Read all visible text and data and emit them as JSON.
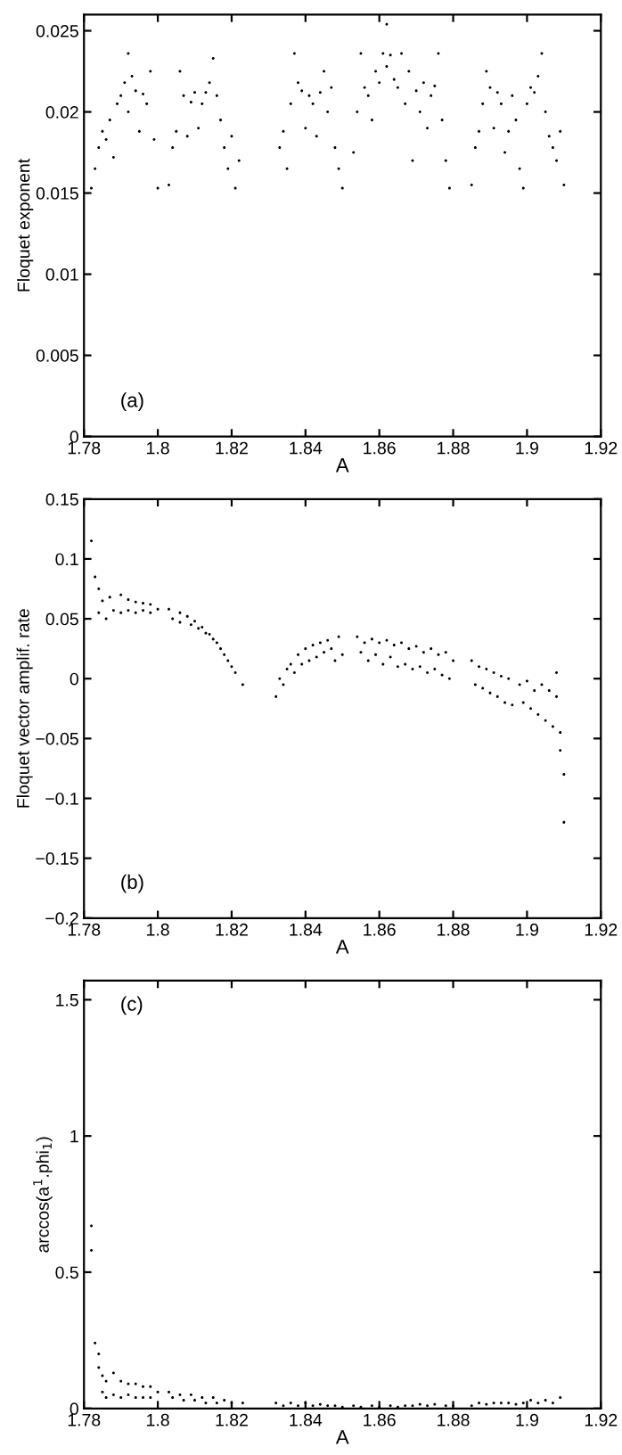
{
  "chart_data": [
    {
      "type": "scatter",
      "xlabel": "A",
      "ylabel": "Floquet exponent",
      "annotations": [
        "(a)"
      ],
      "color": "#000000",
      "marker": "circle",
      "grid": false,
      "xlim": [
        1.78,
        1.92
      ],
      "xticks": [
        1.78,
        1.8,
        1.82,
        1.84,
        1.86,
        1.88,
        1.9,
        1.92
      ],
      "ylim": [
        0,
        0.026
      ],
      "yticks": [
        0,
        0.005,
        0.01,
        0.015,
        0.02,
        0.025
      ],
      "x": [
        1.782,
        1.783,
        1.784,
        1.785,
        1.786,
        1.787,
        1.788,
        1.789,
        1.79,
        1.791,
        1.792,
        1.792,
        1.793,
        1.794,
        1.795,
        1.796,
        1.797,
        1.798,
        1.799,
        1.8,
        1.803,
        1.804,
        1.805,
        1.806,
        1.807,
        1.808,
        1.809,
        1.81,
        1.811,
        1.812,
        1.813,
        1.814,
        1.815,
        1.816,
        1.817,
        1.818,
        1.819,
        1.82,
        1.821,
        1.822,
        1.833,
        1.834,
        1.835,
        1.836,
        1.837,
        1.838,
        1.839,
        1.84,
        1.841,
        1.842,
        1.843,
        1.844,
        1.845,
        1.846,
        1.847,
        1.848,
        1.849,
        1.85,
        1.853,
        1.854,
        1.855,
        1.856,
        1.857,
        1.858,
        1.859,
        1.86,
        1.861,
        1.862,
        1.863,
        1.864,
        1.865,
        1.866,
        1.867,
        1.868,
        1.869,
        1.87,
        1.871,
        1.872,
        1.873,
        1.874,
        1.875,
        1.876,
        1.877,
        1.878,
        1.879,
        1.862,
        1.885,
        1.886,
        1.887,
        1.888,
        1.889,
        1.89,
        1.891,
        1.892,
        1.893,
        1.894,
        1.895,
        1.896,
        1.897,
        1.898,
        1.899,
        1.9,
        1.901,
        1.902,
        1.903,
        1.904,
        1.905,
        1.906,
        1.907,
        1.908,
        1.909,
        1.91
      ],
      "values": [
        0.0153,
        0.0165,
        0.0178,
        0.0188,
        0.0183,
        0.0195,
        0.0172,
        0.0205,
        0.021,
        0.0218,
        0.0236,
        0.02,
        0.0222,
        0.0213,
        0.0188,
        0.0211,
        0.0205,
        0.0225,
        0.0183,
        0.0153,
        0.0155,
        0.0178,
        0.0188,
        0.0225,
        0.021,
        0.0185,
        0.0206,
        0.0212,
        0.019,
        0.0205,
        0.0212,
        0.0218,
        0.0233,
        0.021,
        0.0195,
        0.0178,
        0.0165,
        0.0185,
        0.0153,
        0.017,
        0.0178,
        0.0188,
        0.0165,
        0.0205,
        0.0236,
        0.0218,
        0.0213,
        0.019,
        0.021,
        0.0205,
        0.0185,
        0.0212,
        0.0225,
        0.02,
        0.0215,
        0.0178,
        0.0165,
        0.0153,
        0.0175,
        0.02,
        0.0236,
        0.0215,
        0.021,
        0.0195,
        0.0225,
        0.0218,
        0.0236,
        0.0228,
        0.0235,
        0.022,
        0.0215,
        0.0236,
        0.0205,
        0.0225,
        0.017,
        0.0213,
        0.02,
        0.0218,
        0.019,
        0.021,
        0.0216,
        0.0236,
        0.0195,
        0.017,
        0.0153,
        0.0254,
        0.0155,
        0.0178,
        0.0188,
        0.0205,
        0.0225,
        0.0215,
        0.019,
        0.0212,
        0.0205,
        0.0175,
        0.0188,
        0.021,
        0.0195,
        0.0165,
        0.0153,
        0.0205,
        0.0215,
        0.0212,
        0.0222,
        0.0236,
        0.02,
        0.0185,
        0.0178,
        0.017,
        0.0188,
        0.0155
      ]
    },
    {
      "type": "scatter",
      "xlabel": "A",
      "ylabel": "Floquet vector amplif. rate",
      "annotations": [
        "(b)"
      ],
      "color": "#000000",
      "marker": "circle",
      "grid": false,
      "xlim": [
        1.78,
        1.92
      ],
      "xticks": [
        1.78,
        1.8,
        1.82,
        1.84,
        1.86,
        1.88,
        1.9,
        1.92
      ],
      "ylim": [
        -0.2,
        0.15
      ],
      "yticks": [
        -0.2,
        -0.15,
        -0.1,
        -0.05,
        0,
        0.05,
        0.1,
        0.15
      ],
      "x": [
        1.782,
        1.783,
        1.784,
        1.784,
        1.785,
        1.786,
        1.787,
        1.788,
        1.79,
        1.79,
        1.792,
        1.792,
        1.794,
        1.794,
        1.796,
        1.796,
        1.798,
        1.798,
        1.8,
        1.803,
        1.804,
        1.806,
        1.806,
        1.808,
        1.809,
        1.81,
        1.811,
        1.812,
        1.813,
        1.814,
        1.815,
        1.816,
        1.817,
        1.818,
        1.819,
        1.82,
        1.821,
        1.823,
        1.832,
        1.833,
        1.834,
        1.835,
        1.836,
        1.837,
        1.838,
        1.839,
        1.84,
        1.841,
        1.842,
        1.843,
        1.844,
        1.845,
        1.846,
        1.847,
        1.848,
        1.849,
        1.85,
        1.854,
        1.855,
        1.856,
        1.857,
        1.858,
        1.859,
        1.86,
        1.861,
        1.862,
        1.863,
        1.864,
        1.865,
        1.866,
        1.867,
        1.868,
        1.869,
        1.87,
        1.871,
        1.872,
        1.873,
        1.874,
        1.875,
        1.876,
        1.877,
        1.878,
        1.879,
        1.88,
        1.885,
        1.886,
        1.887,
        1.888,
        1.889,
        1.89,
        1.891,
        1.892,
        1.893,
        1.894,
        1.895,
        1.896,
        1.898,
        1.899,
        1.9,
        1.901,
        1.902,
        1.903,
        1.904,
        1.905,
        1.906,
        1.907,
        1.908,
        1.908,
        1.909,
        1.909,
        1.91,
        1.91
      ],
      "values": [
        0.115,
        0.085,
        0.075,
        0.055,
        0.065,
        0.05,
        0.068,
        0.057,
        0.07,
        0.055,
        0.066,
        0.057,
        0.064,
        0.055,
        0.063,
        0.057,
        0.062,
        0.055,
        0.058,
        0.058,
        0.05,
        0.055,
        0.047,
        0.052,
        0.045,
        0.048,
        0.042,
        0.043,
        0.038,
        0.037,
        0.033,
        0.03,
        0.025,
        0.02,
        0.015,
        0.01,
        0.005,
        -0.005,
        -0.015,
        0,
        -0.005,
        0.008,
        0.012,
        0.005,
        0.02,
        0.012,
        0.025,
        0.015,
        0.028,
        0.018,
        0.03,
        0.022,
        0.032,
        0.025,
        0.015,
        0.035,
        0.02,
        0.035,
        0.022,
        0.03,
        0.015,
        0.033,
        0.02,
        0.03,
        0.012,
        0.032,
        0.018,
        0.028,
        0.01,
        0.03,
        0.012,
        0.025,
        0.008,
        0.027,
        0.01,
        0.022,
        0.005,
        0.025,
        0.008,
        0.02,
        0.003,
        0.022,
        0,
        0.015,
        0.015,
        -0.005,
        0.01,
        -0.008,
        0.008,
        -0.012,
        0.005,
        -0.015,
        0.002,
        -0.02,
        0,
        -0.022,
        -0.005,
        -0.02,
        -0.002,
        -0.025,
        -0.01,
        -0.03,
        -0.005,
        -0.035,
        -0.01,
        -0.04,
        0.005,
        -0.015,
        -0.045,
        -0.06,
        -0.08,
        -0.12
      ]
    },
    {
      "type": "scatter",
      "xlabel": "A",
      "ylabel": "arccos(a$^{1}$.phi$_{1}$)",
      "annotations": [
        "(c)"
      ],
      "color": "#000000",
      "marker": "circle",
      "grid": false,
      "xlim": [
        1.78,
        1.92
      ],
      "xticks": [
        1.78,
        1.8,
        1.82,
        1.84,
        1.86,
        1.88,
        1.9,
        1.92
      ],
      "ylim": [
        0,
        1.57
      ],
      "yticks": [
        0,
        0.5,
        1,
        1.5
      ],
      "x": [
        1.782,
        1.782,
        1.783,
        1.784,
        1.784,
        1.785,
        1.785,
        1.786,
        1.786,
        1.788,
        1.788,
        1.79,
        1.79,
        1.792,
        1.792,
        1.794,
        1.794,
        1.796,
        1.796,
        1.798,
        1.798,
        1.8,
        1.803,
        1.804,
        1.806,
        1.807,
        1.809,
        1.81,
        1.812,
        1.813,
        1.815,
        1.816,
        1.818,
        1.82,
        1.823,
        1.832,
        1.834,
        1.836,
        1.838,
        1.84,
        1.842,
        1.844,
        1.846,
        1.848,
        1.85,
        1.853,
        1.855,
        1.858,
        1.86,
        1.863,
        1.865,
        1.867,
        1.869,
        1.871,
        1.873,
        1.875,
        1.878,
        1.88,
        1.885,
        1.887,
        1.889,
        1.891,
        1.893,
        1.895,
        1.897,
        1.899,
        1.901,
        1.903,
        1.905,
        1.907,
        1.909
      ],
      "values": [
        0.67,
        0.58,
        0.24,
        0.2,
        0.15,
        0.12,
        0.06,
        0.1,
        0.04,
        0.13,
        0.05,
        0.1,
        0.04,
        0.09,
        0.05,
        0.09,
        0.04,
        0.08,
        0.04,
        0.08,
        0.04,
        0.06,
        0.06,
        0.04,
        0.05,
        0.03,
        0.05,
        0.03,
        0.04,
        0.02,
        0.04,
        0.02,
        0.03,
        0.02,
        0.02,
        0.02,
        0.01,
        0.02,
        0.01,
        0.02,
        0.01,
        0.015,
        0.01,
        0.01,
        0.005,
        0.01,
        0.005,
        0.01,
        0.005,
        0.01,
        0.005,
        0.01,
        0.01,
        0.015,
        0.01,
        0.015,
        0.01,
        0.01,
        0.01,
        0.02,
        0.015,
        0.02,
        0.02,
        0.02,
        0.015,
        0.02,
        0.03,
        0.02,
        0.03,
        0.02,
        0.04
      ]
    }
  ]
}
